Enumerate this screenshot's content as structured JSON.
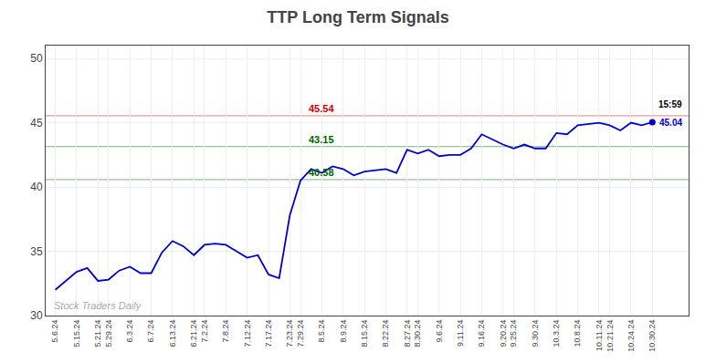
{
  "chart_data": {
    "type": "line",
    "title": "TTP Long Term Signals",
    "categories": [
      "5.6.24",
      null,
      "5.15.24",
      null,
      "5.21.24",
      "5.29.24",
      null,
      "6.3.24",
      null,
      "6.7.24",
      null,
      "6.13.24",
      null,
      "6.21.24",
      "7.2.24",
      null,
      "7.8.24",
      null,
      "7.12.24",
      null,
      "7.17.24",
      null,
      "7.23.24",
      "7.29.24",
      null,
      "8.5.24",
      null,
      "8.9.24",
      null,
      "8.15.24",
      null,
      "8.22.24",
      null,
      "8.27.24",
      "8.30.24",
      null,
      "9.6.24",
      null,
      "9.11.24",
      null,
      "9.16.24",
      null,
      "9.20.24",
      "9.25.24",
      null,
      "9.30.24",
      null,
      "10.3.24",
      null,
      "10.8.24",
      null,
      "10.11.24",
      "10.21.24",
      null,
      "10.24.24",
      null,
      "10.30.24"
    ],
    "series": [
      {
        "name": "TTP",
        "color": "#0000cc",
        "values": [
          32.0,
          32.7,
          33.4,
          33.7,
          32.7,
          32.8,
          33.5,
          33.8,
          33.3,
          33.3,
          34.9,
          35.8,
          35.4,
          34.7,
          35.5,
          35.6,
          35.5,
          35.0,
          34.5,
          34.7,
          33.2,
          32.9,
          37.8,
          40.5,
          41.4,
          41.1,
          41.6,
          41.4,
          40.9,
          41.2,
          41.3,
          41.4,
          41.1,
          42.9,
          42.6,
          42.9,
          42.4,
          42.5,
          42.5,
          43.0,
          44.1,
          43.7,
          43.3,
          43.0,
          43.3,
          43.0,
          43.0,
          44.2,
          44.1,
          44.8,
          44.9,
          45.0,
          44.8,
          44.4,
          45.0,
          44.8,
          45.04
        ]
      }
    ],
    "hlines": [
      {
        "value": 45.54,
        "label": "45.54",
        "color": "#cc0000"
      },
      {
        "value": 43.15,
        "label": "43.15",
        "color": "#006600"
      },
      {
        "value": 40.58,
        "label": "40.58",
        "color": "#006600"
      }
    ],
    "annotations": [
      {
        "text": "15:59",
        "color": "#000000"
      },
      {
        "text": "45.04",
        "color": "#0000cc"
      },
      {
        "text": "Stock Traders Daily",
        "color": "#aaaaaa"
      }
    ],
    "ylim": [
      30,
      51
    ],
    "yticks": [
      30,
      35,
      40,
      45,
      50
    ],
    "grid": true
  }
}
